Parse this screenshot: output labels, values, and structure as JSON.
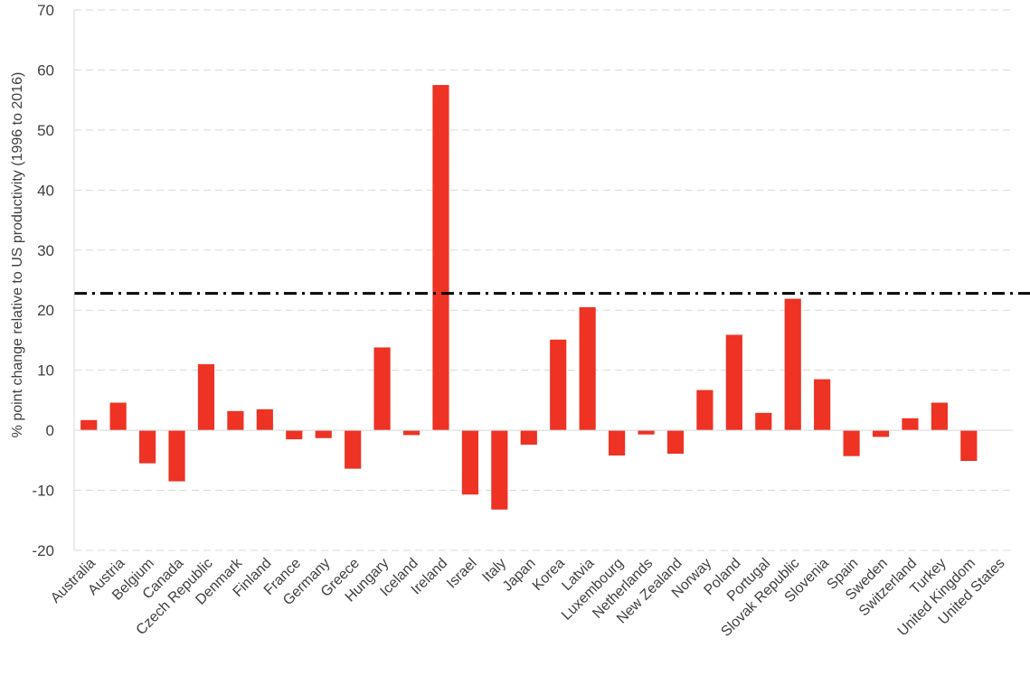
{
  "chart_data": {
    "type": "bar",
    "ylabel": "% point change relative to US productivity (1996 to 2016)",
    "ylim": [
      -20,
      70
    ],
    "yticks": [
      -20,
      -10,
      0,
      10,
      20,
      30,
      40,
      50,
      60,
      70
    ],
    "grid": "horizontal dashed",
    "reference_line": {
      "value": 22.8,
      "style": "dash-dot"
    },
    "bar_color": "#ee3224",
    "categories": [
      "Australia",
      "Austria",
      "Belgium",
      "Canada",
      "Czech Republic",
      "Denmark",
      "Finland",
      "France",
      "Germany",
      "Greece",
      "Hungary",
      "Iceland",
      "Ireland",
      "Israel",
      "Italy",
      "Japan",
      "Korea",
      "Latvia",
      "Luxembourg",
      "Netherlands",
      "New Zealand",
      "Norway",
      "Poland",
      "Portugal",
      "Slovak Republic",
      "Slovenia",
      "Spain",
      "Sweden",
      "Switzerland",
      "Turkey",
      "United Kingdom",
      "United States"
    ],
    "values": [
      1.7,
      4.6,
      -5.5,
      -8.5,
      11.0,
      3.2,
      3.5,
      -1.5,
      -1.3,
      -6.4,
      13.8,
      -0.8,
      57.5,
      -10.7,
      -13.2,
      -2.4,
      15.1,
      20.5,
      -4.2,
      -0.7,
      -3.9,
      6.7,
      15.9,
      2.9,
      21.9,
      8.5,
      -4.3,
      -1.1,
      2.0,
      4.6,
      -5.1,
      0
    ]
  }
}
